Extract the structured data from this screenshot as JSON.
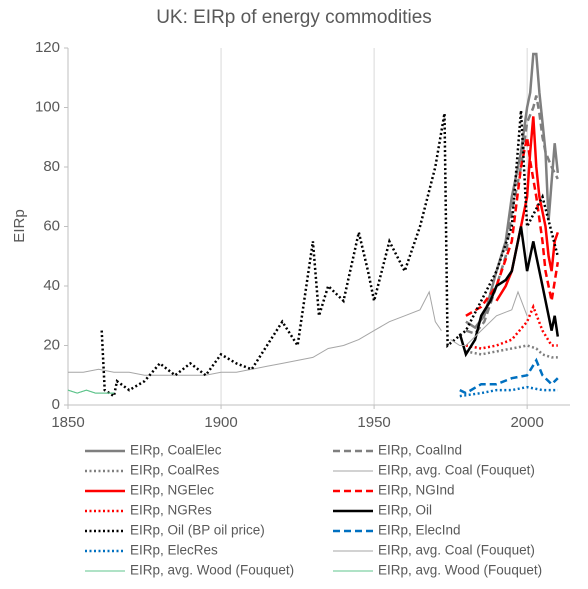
{
  "chart_data": {
    "type": "line",
    "title": "UK: EIRp of energy commodities",
    "y_label": "EIRp",
    "xlim": [
      1850,
      2014
    ],
    "ylim": [
      0,
      120
    ],
    "xticks": [
      1850,
      1900,
      1950,
      2000
    ],
    "yticks": [
      0,
      20,
      40,
      60,
      80,
      100,
      120
    ],
    "grid": "x",
    "series": [
      {
        "name": "EIRp, CoalElec",
        "color": "#7f7f7f",
        "style": "solid",
        "weight": "thick",
        "x": [
          1980,
          1983,
          1986,
          1990,
          1993,
          1995,
          1997,
          1998,
          2000,
          2001,
          2002,
          2003,
          2004,
          2005,
          2006,
          2007,
          2008,
          2009,
          2010
        ],
        "values": [
          28,
          26,
          30,
          45,
          55,
          70,
          80,
          85,
          100,
          105,
          118,
          118,
          105,
          95,
          85,
          62,
          75,
          88,
          78
        ]
      },
      {
        "name": "EIRp, CoalInd",
        "color": "#7f7f7f",
        "style": "dashed",
        "weight": "thick",
        "x": [
          1980,
          1983,
          1986,
          1990,
          1993,
          1995,
          1998,
          2000,
          2002,
          2003,
          2004,
          2005,
          2006,
          2008,
          2010
        ],
        "values": [
          25,
          24,
          28,
          40,
          50,
          65,
          80,
          95,
          100,
          104,
          98,
          90,
          85,
          80,
          76
        ]
      },
      {
        "name": "EIRp, CoalRes",
        "color": "#7f7f7f",
        "style": "dotted",
        "weight": "thick",
        "x": [
          1980,
          1985,
          1990,
          1995,
          2000,
          2003,
          2005,
          2008,
          2010
        ],
        "values": [
          18,
          17,
          18,
          19,
          20,
          19,
          17,
          16,
          16
        ]
      },
      {
        "name": "EIRp, avg. Coal (Fouquet)",
        "color": "#a6a6a6",
        "style": "solid",
        "weight": "thin",
        "x": [
          1850,
          1855,
          1860,
          1865,
          1870,
          1875,
          1880,
          1885,
          1890,
          1895,
          1900,
          1905,
          1910,
          1915,
          1920,
          1925,
          1930,
          1935,
          1940,
          1945,
          1950,
          1955,
          1960,
          1965,
          1968,
          1970,
          1972
        ],
        "values": [
          11,
          11,
          12,
          11,
          11,
          10,
          10,
          10,
          10,
          10,
          11,
          11,
          12,
          13,
          14,
          15,
          16,
          19,
          20,
          22,
          25,
          28,
          30,
          32,
          38,
          28,
          25
        ]
      },
      {
        "name": "EIRp, NGElec",
        "color": "#ff0000",
        "style": "solid",
        "weight": "thick",
        "x": [
          1990,
          1993,
          1995,
          1998,
          2000,
          2001,
          2002,
          2003,
          2004,
          2006,
          2007,
          2008,
          2009,
          2010
        ],
        "values": [
          35,
          40,
          45,
          60,
          70,
          85,
          97,
          80,
          70,
          60,
          50,
          45,
          55,
          58
        ]
      },
      {
        "name": "EIRp, NGInd",
        "color": "#ff0000",
        "style": "dashed",
        "weight": "thick",
        "x": [
          1980,
          1985,
          1990,
          1995,
          1998,
          2000,
          2001,
          2003,
          2005,
          2006,
          2008,
          2010
        ],
        "values": [
          30,
          33,
          40,
          55,
          80,
          90,
          82,
          70,
          55,
          45,
          35,
          48
        ]
      },
      {
        "name": "EIRp, NGRes",
        "color": "#ff0000",
        "style": "dotted",
        "weight": "thick",
        "x": [
          1980,
          1985,
          1990,
          1995,
          2000,
          2002,
          2005,
          2008,
          2010
        ],
        "values": [
          20,
          19,
          20,
          22,
          28,
          33,
          25,
          20,
          20
        ]
      },
      {
        "name": "EIRp, Oil",
        "color": "#000000",
        "style": "solid",
        "weight": "thick",
        "x": [
          1978,
          1980,
          1983,
          1985,
          1988,
          1990,
          1993,
          1995,
          1998,
          2000,
          2002,
          2003,
          2005,
          2007,
          2008,
          2009,
          2010
        ],
        "values": [
          24,
          17,
          22,
          30,
          35,
          40,
          42,
          45,
          60,
          45,
          55,
          50,
          40,
          30,
          25,
          30,
          23
        ]
      },
      {
        "name": "EIRp, Oil (BP oil price)",
        "color": "#000000",
        "style": "dotted",
        "weight": "thick",
        "x": [
          1861,
          1862,
          1865,
          1866,
          1870,
          1875,
          1880,
          1885,
          1890,
          1895,
          1900,
          1905,
          1910,
          1915,
          1920,
          1925,
          1930,
          1932,
          1935,
          1940,
          1945,
          1948,
          1950,
          1955,
          1960,
          1965,
          1970,
          1973,
          1974,
          1980,
          1985,
          1990,
          1995,
          1998,
          2000,
          2005,
          2010
        ],
        "values": [
          25,
          5,
          3,
          8,
          5,
          8,
          14,
          10,
          14,
          10,
          17,
          14,
          12,
          20,
          28,
          20,
          55,
          30,
          40,
          35,
          58,
          45,
          35,
          55,
          45,
          60,
          80,
          98,
          20,
          25,
          35,
          45,
          60,
          99,
          60,
          70,
          50
        ]
      },
      {
        "name": "EIRp, ElecInd",
        "color": "#0070c0",
        "style": "dashed",
        "weight": "thick",
        "x": [
          1978,
          1980,
          1985,
          1990,
          1995,
          2000,
          2003,
          2005,
          2008,
          2010
        ],
        "values": [
          5,
          4,
          7,
          7,
          9,
          10,
          15,
          10,
          7,
          9
        ]
      },
      {
        "name": "EIRp, ElecRes",
        "color": "#0070c0",
        "style": "dotted",
        "weight": "thick",
        "x": [
          1978,
          1985,
          1990,
          1995,
          2000,
          2005,
          2010
        ],
        "values": [
          3,
          4,
          5,
          5,
          6,
          5,
          5
        ]
      },
      {
        "name": "EIRp, avg. Coal (Fouquet)",
        "color": "#a6a6a6",
        "style": "solid",
        "weight": "thin",
        "x": [
          1975,
          1978,
          1980,
          1985,
          1990,
          1995,
          1997,
          2000
        ],
        "values": [
          22,
          20,
          20,
          25,
          30,
          32,
          38,
          30
        ]
      },
      {
        "name": "EIRp, avg. Wood (Fouquet)",
        "color": "#5fc48c",
        "style": "solid",
        "weight": "thin",
        "x": [
          1850,
          1853,
          1856,
          1859,
          1862,
          1865
        ],
        "values": [
          5,
          4,
          5,
          4,
          4,
          4
        ]
      },
      {
        "name": "EIRp, avg. Wood (Fouquet)",
        "color": "#5fc48c",
        "style": "solid",
        "weight": "thin",
        "x": [
          1850,
          1853,
          1856,
          1859,
          1862,
          1865
        ],
        "values": [
          5,
          4,
          5,
          4,
          4,
          4
        ]
      }
    ]
  }
}
